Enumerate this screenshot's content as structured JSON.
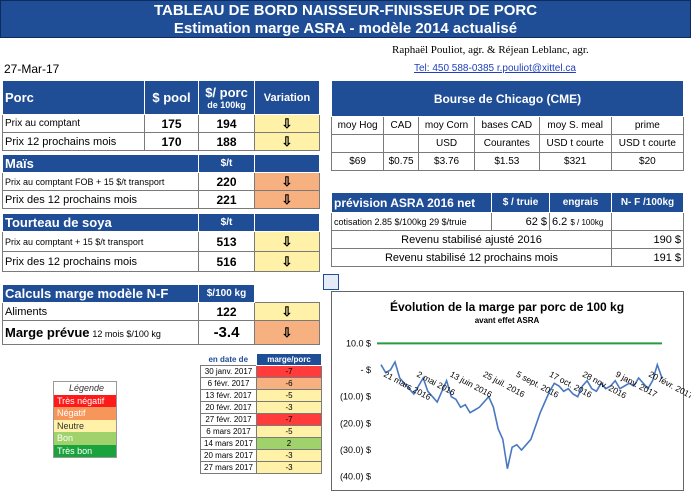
{
  "header": {
    "title": "TABLEAU DE BORD NAISSEUR-FINISSEUR DE PORC",
    "subtitle": "Estimation marge ASRA - modèle 2014 actualisé"
  },
  "meta": {
    "date": "27-Mar-17",
    "authors": "Raphaël Pouliot, agr.    &    Réjean Leblanc, agr.",
    "contact": "Tel:     450 588-0385   r.pouliot@xittel.ca"
  },
  "porc": {
    "title": "Porc",
    "col_pool": "$ pool",
    "col_porc": "$/ porc",
    "col_porc_sub": "de 100kg",
    "col_var": "Variation",
    "rows": [
      {
        "label": "Prix au comptant",
        "pool": "175",
        "porc": "194"
      },
      {
        "label": "Prix 12 prochains mois",
        "pool": "170",
        "porc": "188"
      }
    ]
  },
  "mais": {
    "title": "Maïs",
    "unit": "$/t",
    "rows": [
      {
        "label": "Prix au comptant  FOB + 15 $/t transport",
        "value": "220"
      },
      {
        "label": "Prix des 12 prochains mois",
        "value": "221"
      }
    ]
  },
  "soya": {
    "title": "Tourteau de soya",
    "unit": "$/t",
    "rows": [
      {
        "label": "Prix au comptant + 15 $/t transport",
        "value": "513"
      },
      {
        "label": "Prix des 12 prochains mois",
        "value": "516"
      }
    ]
  },
  "calc": {
    "title": "Calculs marge  modèle N-F",
    "unit": "$/100 kg",
    "aliments_label": "Aliments",
    "aliments_value": "122",
    "marge_label": "Marge prévue",
    "marge_sub": "12 mois  $/100 kg",
    "marge_value": "-3.4"
  },
  "cme": {
    "title": "Bourse de Chicago (CME)",
    "cols": [
      "moy Hog",
      "CAD",
      "moy Corn",
      "bases CAD",
      "moy S. meal",
      "prime"
    ],
    "units": [
      "",
      "",
      "USD",
      "Courantes",
      "USD t courte",
      "USD t courte"
    ],
    "values": [
      "$69",
      "$0.75",
      "$3.76",
      "$1.53",
      "$321",
      "$20"
    ]
  },
  "asra": {
    "title": "prévision ASRA 2016 net",
    "col_truie": "$ / truie",
    "col_engrais": "engrais",
    "col_nf": "N- F /100kg",
    "cotisation_label": "cotisation  2.85 $/100kg  29 $/truie",
    "cotisation_value": "62  $",
    "engrais_value": "6.2",
    "engrais_unit": "$ / 100kg",
    "rows": [
      {
        "label": "Revenu stabilisé ajusté 2016",
        "value": "190  $"
      },
      {
        "label": "Revenu stabilisé 12 prochains mois",
        "value": "191  $"
      }
    ]
  },
  "legend": {
    "title": "Légende",
    "items": [
      {
        "label": "Très négatif",
        "color": "#ff1a1a"
      },
      {
        "label": "Négatif",
        "color": "#f7965a"
      },
      {
        "label": "Neutre",
        "color": "#fff2a8"
      },
      {
        "label": "Bon",
        "color": "#9fd26a"
      },
      {
        "label": "Très bon",
        "color": "#1aa33c"
      }
    ]
  },
  "history": {
    "col_date": "en date de",
    "col_marge": "marge/porc",
    "rows": [
      {
        "date": "30 janv. 2017",
        "value": "-7",
        "color": "#ff3b3b"
      },
      {
        "date": "6 févr. 2017",
        "value": "-6",
        "color": "#f7965a"
      },
      {
        "date": "13 févr. 2017",
        "value": "-5",
        "color": "#fff2a8"
      },
      {
        "date": "20 févr. 2017",
        "value": "-3",
        "color": "#fff2a8"
      },
      {
        "date": "27 févr. 2017",
        "value": "-7",
        "color": "#ff3b3b"
      },
      {
        "date": "6 mars 2017",
        "value": "-5",
        "color": "#fff2a8"
      },
      {
        "date": "14 mars 2017",
        "value": "2",
        "color": "#9fd26a"
      },
      {
        "date": "20 mars 2017",
        "value": "-3",
        "color": "#fff2a8"
      },
      {
        "date": "27 mars 2017",
        "value": "-3",
        "color": "#fff2a8"
      }
    ]
  },
  "chart_data": {
    "type": "line",
    "title": "Évolution de la marge par porc de 100 kg",
    "subtitle": "avant effet ASRA",
    "ytick_labels": [
      "10.0 $",
      "-   $",
      "(10.0) $",
      "(20.0) $",
      "(30.0) $",
      "(40.0) $"
    ],
    "ytick_values": [
      10,
      0,
      -10,
      -20,
      -30,
      -40
    ],
    "ylim": [
      -42,
      15
    ],
    "xtick_labels": [
      "21 mars 2016",
      "2 mai 2016",
      "13 juin 2016",
      "25 juil. 2016",
      "5 sept. 2016",
      "17 oct. 2016",
      "28 nov. 2016",
      "9 janv. 2017",
      "20 févr. 2017"
    ],
    "series": [
      {
        "color": "#4a78c0",
        "values": [
          2,
          -1,
          0,
          3,
          -3,
          -5,
          -7,
          -9,
          -6,
          -3,
          -8,
          -10,
          -12,
          -8,
          -4,
          -10,
          -11,
          -14,
          -13,
          -16,
          -15,
          -14,
          -12,
          -10,
          -14,
          -22,
          -26,
          -37,
          -29,
          -28,
          -30,
          -28,
          -26,
          -21,
          -16,
          -12,
          -8,
          -5,
          -6,
          -8,
          -7,
          -9,
          -10,
          -6,
          -4,
          -7,
          -8,
          -5,
          -7,
          -6,
          -4,
          -7,
          -6,
          -5,
          -6,
          -3,
          -5,
          -7,
          -4,
          2,
          -3
        ]
      },
      {
        "color": "#2a9a3c",
        "values": [
          10,
          10
        ]
      }
    ]
  }
}
